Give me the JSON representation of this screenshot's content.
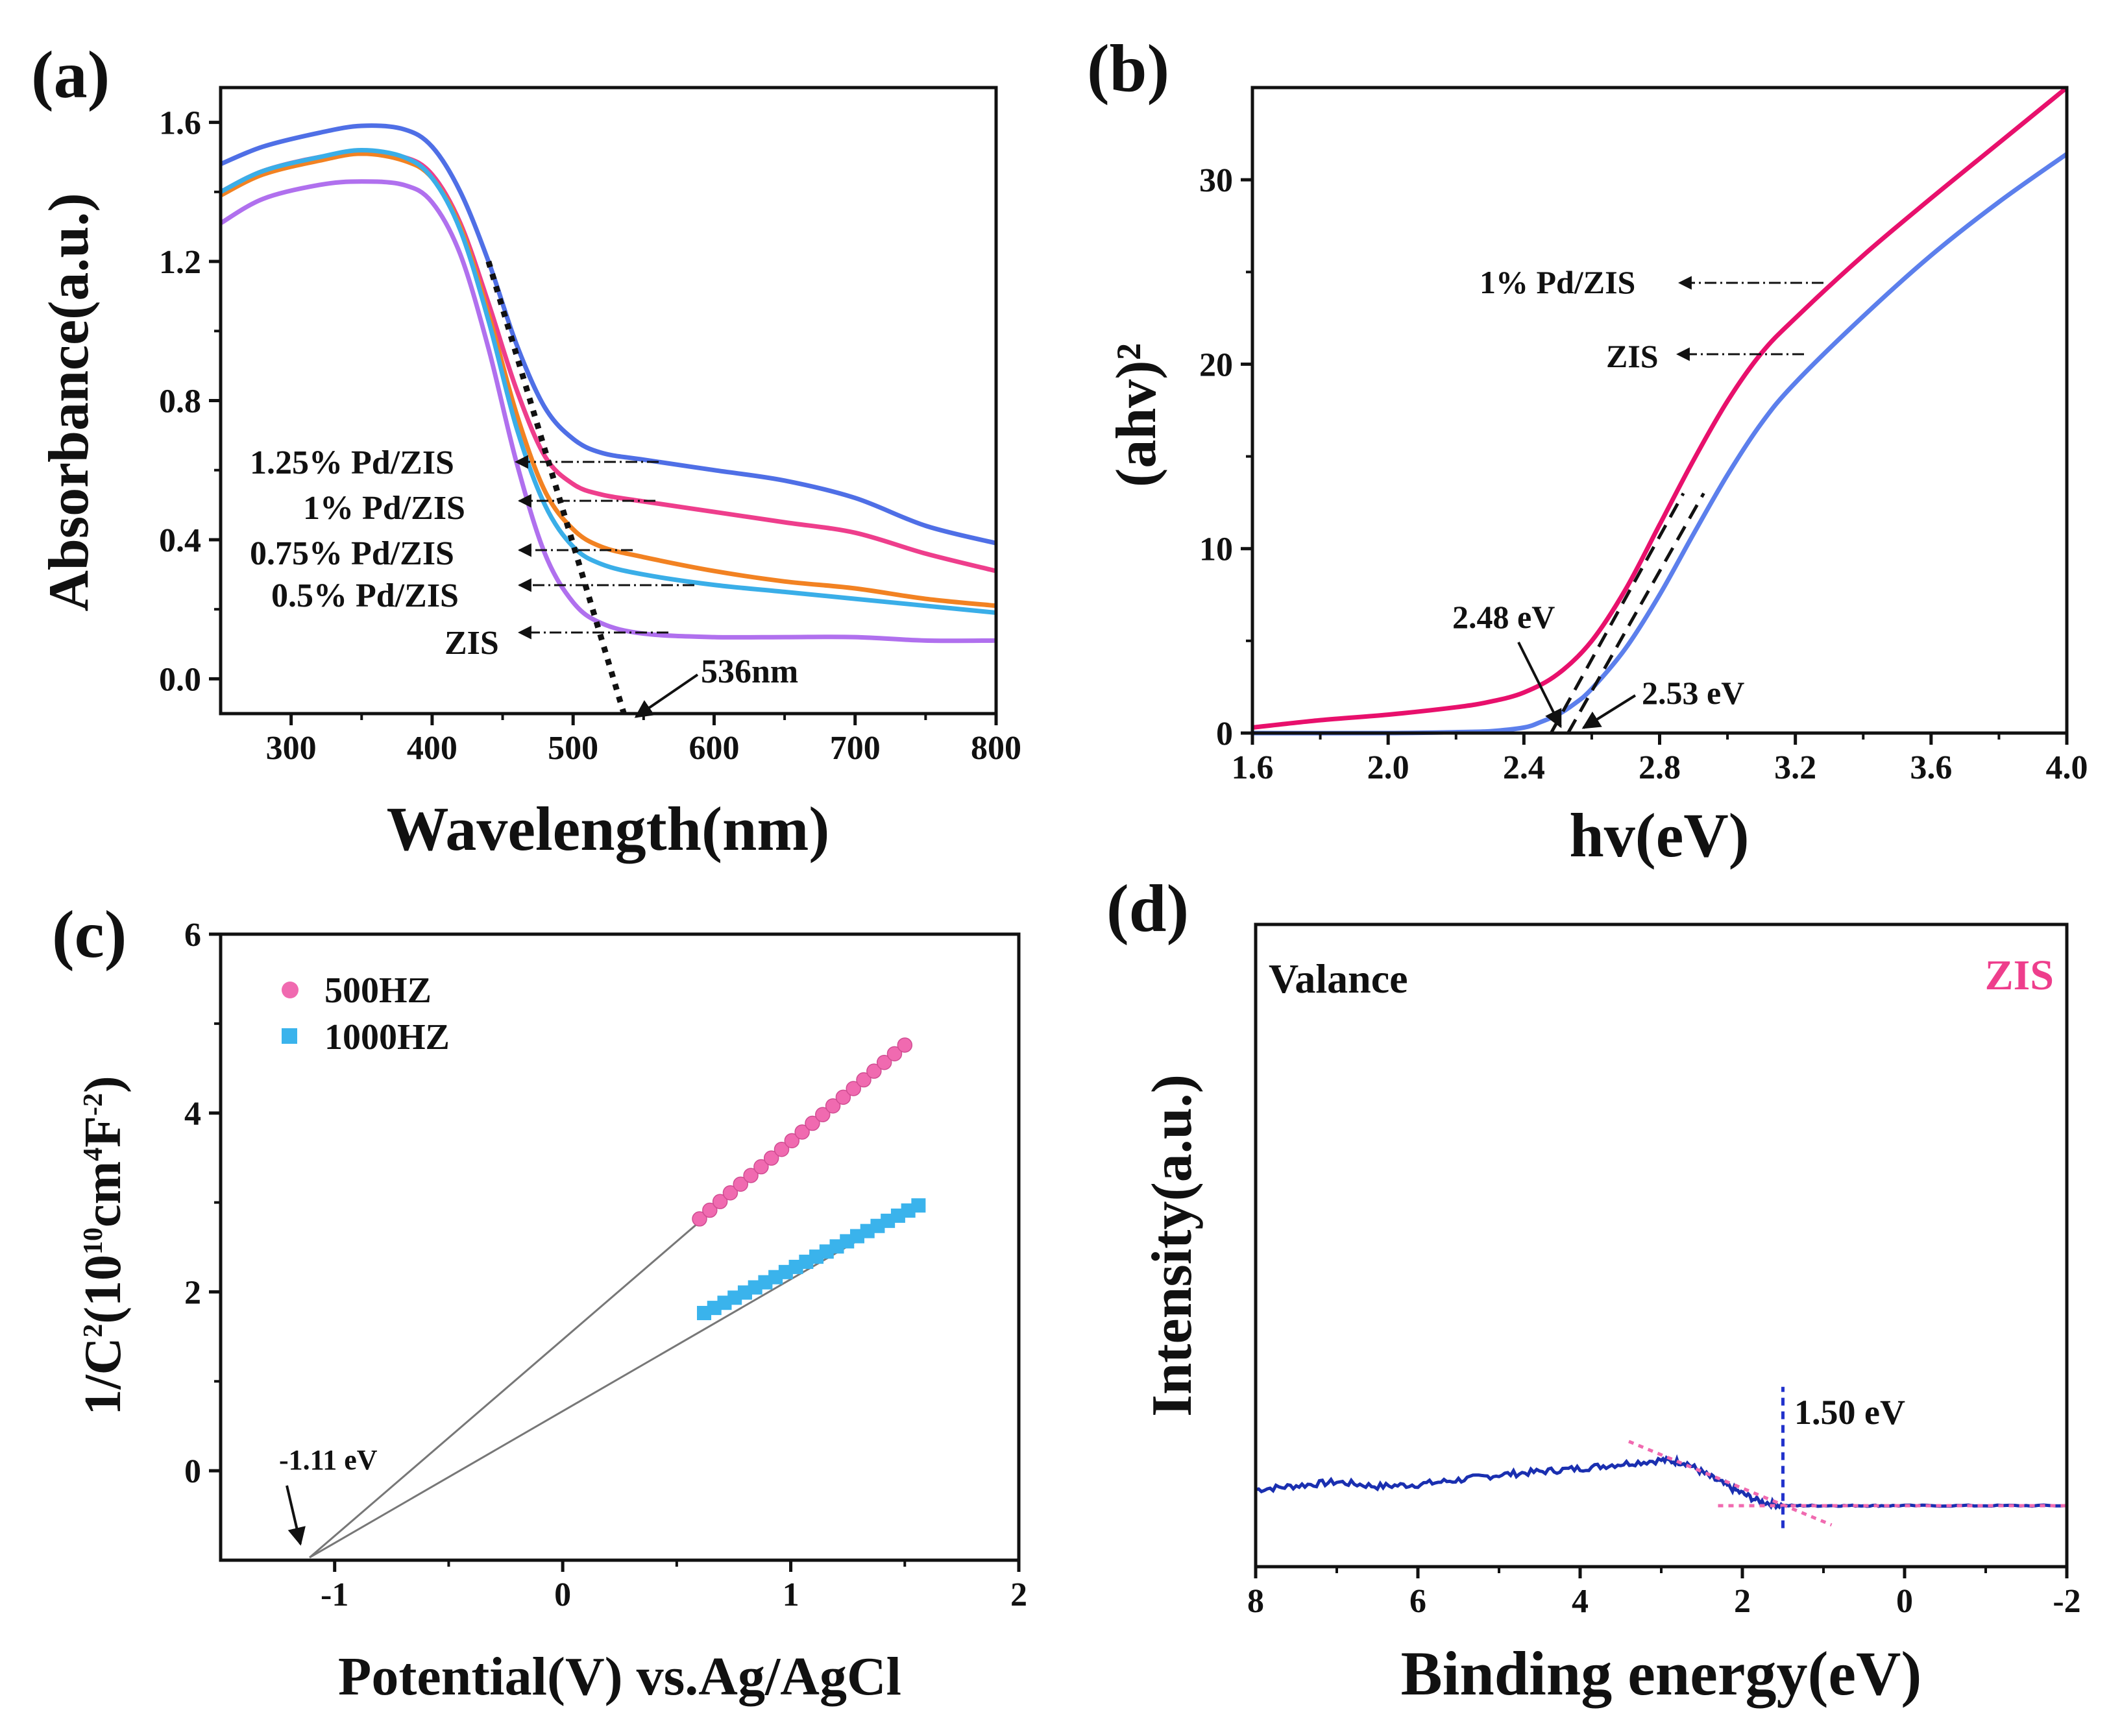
{
  "chart_data": [
    {
      "id": "a",
      "type": "line",
      "panel_label": "(a)",
      "xlabel": "Wavelength(nm)",
      "ylabel": "Absorbance(a.u.)",
      "xlim": [
        250,
        800
      ],
      "ylim": [
        -0.1,
        1.7
      ],
      "xticks": [
        300,
        400,
        500,
        600,
        700,
        800
      ],
      "yticks": [
        0.0,
        0.4,
        0.8,
        1.2,
        1.6
      ],
      "ytick_labels": [
        "0.0",
        "0.4",
        "0.8",
        "1.2",
        "1.6"
      ],
      "series": [
        {
          "name": "1.25% Pd/ZIS",
          "color": "#4f6fe6",
          "x": [
            250,
            280,
            320,
            350,
            380,
            400,
            420,
            440,
            460,
            480,
            500,
            520,
            550,
            600,
            650,
            700,
            750,
            800
          ],
          "y": [
            1.48,
            1.53,
            1.57,
            1.59,
            1.58,
            1.53,
            1.4,
            1.2,
            0.96,
            0.78,
            0.69,
            0.65,
            0.63,
            0.6,
            0.57,
            0.52,
            0.44,
            0.39
          ]
        },
        {
          "name": "1% Pd/ZIS",
          "color": "#ee3e8c",
          "x": [
            250,
            280,
            320,
            350,
            380,
            400,
            420,
            440,
            460,
            480,
            500,
            520,
            550,
            600,
            650,
            700,
            750,
            800
          ],
          "y": [
            1.4,
            1.46,
            1.5,
            1.51,
            1.5,
            1.45,
            1.31,
            1.08,
            0.83,
            0.64,
            0.56,
            0.53,
            0.51,
            0.48,
            0.45,
            0.42,
            0.36,
            0.31
          ]
        },
        {
          "name": "0.75% Pd/ZIS",
          "color": "#f28222",
          "x": [
            250,
            280,
            320,
            350,
            380,
            400,
            420,
            440,
            460,
            480,
            500,
            520,
            550,
            600,
            650,
            700,
            750,
            800
          ],
          "y": [
            1.39,
            1.45,
            1.49,
            1.51,
            1.49,
            1.44,
            1.3,
            1.05,
            0.76,
            0.54,
            0.43,
            0.38,
            0.35,
            0.31,
            0.28,
            0.26,
            0.23,
            0.21
          ]
        },
        {
          "name": "0.5% Pd/ZIS",
          "color": "#3aaee8",
          "x": [
            250,
            280,
            320,
            350,
            380,
            400,
            420,
            440,
            460,
            480,
            500,
            520,
            550,
            600,
            650,
            700,
            750,
            800
          ],
          "y": [
            1.4,
            1.46,
            1.5,
            1.52,
            1.5,
            1.44,
            1.29,
            1.03,
            0.72,
            0.5,
            0.38,
            0.33,
            0.3,
            0.27,
            0.25,
            0.23,
            0.21,
            0.19
          ]
        },
        {
          "name": "ZIS",
          "color": "#b070ee",
          "x": [
            250,
            280,
            320,
            350,
            380,
            400,
            420,
            440,
            460,
            480,
            500,
            520,
            550,
            600,
            650,
            700,
            750,
            800
          ],
          "y": [
            1.31,
            1.38,
            1.42,
            1.43,
            1.42,
            1.37,
            1.22,
            0.95,
            0.62,
            0.36,
            0.22,
            0.16,
            0.13,
            0.12,
            0.12,
            0.12,
            0.11,
            0.11
          ]
        }
      ],
      "tangent": {
        "x": [
          440,
          536
        ],
        "y": [
          1.2,
          -0.1
        ]
      },
      "labels": [
        "1.25% Pd/ZIS",
        "1% Pd/ZIS",
        "0.75% Pd/ZIS",
        "0.5% Pd/ZIS",
        "ZIS"
      ],
      "annotation": {
        "text": "536nm",
        "x": 536
      }
    },
    {
      "id": "b",
      "type": "line",
      "panel_label": "(b)",
      "xlabel": "hv(eV)",
      "ylabel": "(ahv)²",
      "xlim": [
        1.6,
        4.0
      ],
      "ylim": [
        0,
        35
      ],
      "xticks": [
        1.6,
        2.0,
        2.4,
        2.8,
        3.2,
        3.6,
        4.0
      ],
      "xtick_labels": [
        "1.6",
        "2.0",
        "2.4",
        "2.8",
        "3.2",
        "3.6",
        "4.0"
      ],
      "yticks": [
        0,
        10,
        20,
        30
      ],
      "series": [
        {
          "name": "1% Pd/ZIS",
          "color": "#e8106c",
          "x": [
            1.6,
            1.8,
            2.0,
            2.2,
            2.3,
            2.4,
            2.5,
            2.6,
            2.7,
            2.8,
            2.9,
            3.0,
            3.1,
            3.2,
            3.4,
            3.6,
            3.8,
            4.0
          ],
          "y": [
            0.3,
            0.7,
            1.0,
            1.4,
            1.7,
            2.2,
            3.2,
            5.0,
            7.8,
            11.3,
            14.8,
            18.0,
            20.6,
            22.5,
            25.9,
            29.0,
            32.0,
            35.0
          ]
        },
        {
          "name": "ZIS",
          "color": "#5c7fec",
          "x": [
            1.6,
            2.0,
            2.2,
            2.3,
            2.4,
            2.45,
            2.5,
            2.55,
            2.6,
            2.7,
            2.8,
            2.9,
            3.0,
            3.1,
            3.2,
            3.4,
            3.6,
            3.8,
            4.0
          ],
          "y": [
            0.0,
            0.0,
            0.05,
            0.1,
            0.3,
            0.6,
            1.0,
            1.6,
            2.4,
            4.6,
            7.5,
            10.8,
            14.0,
            16.8,
            19.0,
            22.6,
            25.9,
            28.8,
            31.4
          ]
        }
      ],
      "tangents": [
        {
          "x": [
            2.48,
            2.87
          ],
          "y": [
            0,
            13.0
          ]
        },
        {
          "x": [
            2.53,
            2.93
          ],
          "y": [
            0,
            13.0
          ]
        }
      ],
      "labels": [
        "1% Pd/ZIS",
        "ZIS"
      ],
      "annotations": [
        {
          "text": "2.48 eV",
          "x": 2.48
        },
        {
          "text": "2.53 eV",
          "x": 2.53
        }
      ]
    },
    {
      "id": "c",
      "type": "scatter",
      "panel_label": "(c)",
      "xlabel": "Potential(V) vs.Ag/AgCl",
      "ylabel_main": "1/C",
      "ylabel_sup1": "2",
      "ylabel_mid": "(10",
      "ylabel_sup2": "10",
      "ylabel_unit": "cm",
      "ylabel_sup3": "4",
      "ylabel_unit2": "F",
      "ylabel_sup4": "-2",
      "ylabel_end": ")",
      "xlim": [
        -1.5,
        2
      ],
      "ylim": [
        -1,
        6
      ],
      "xticks": [
        -1,
        0,
        1,
        2
      ],
      "yticks": [
        0,
        2,
        4,
        6
      ],
      "series": [
        {
          "name": "500HZ",
          "color": "#f06ab0",
          "marker": "circle",
          "x_start": 0.6,
          "x_end": 1.5,
          "n": 21,
          "slope": 2.16,
          "intercept": 1.52
        },
        {
          "name": "1000HZ",
          "color": "#3ab3ec",
          "marker": "square",
          "x_start": 0.62,
          "x_end": 1.56,
          "n": 22,
          "slope": 1.28,
          "intercept": 0.97
        }
      ],
      "fit_origin": {
        "x": -1.11,
        "y": -0.97
      },
      "annotation": {
        "text": "-1.11 eV",
        "x": -1.11
      }
    },
    {
      "id": "d",
      "type": "line",
      "panel_label": "(d)",
      "xlabel": "Binding energy(eV)",
      "ylabel": "Intensity(a.u.)",
      "xlim": [
        8,
        -2
      ],
      "ylim": [
        0,
        100
      ],
      "xticks": [
        8,
        6,
        4,
        2,
        0,
        -2
      ],
      "title_left": "Valance",
      "title_right": "ZIS",
      "title_right_color": "#ee3e8c",
      "series": [
        {
          "name": "ZIS",
          "color": "#1a2fb0",
          "x": [
            8,
            7.5,
            7,
            6.5,
            6,
            5.5,
            5,
            4.5,
            4,
            3.5,
            3,
            2.7,
            2.4,
            2.1,
            1.8,
            1.5,
            1.0,
            0.5,
            0,
            -1,
            -2
          ],
          "y": [
            12.0,
            12.6,
            13.2,
            12.5,
            12.8,
            13.5,
            14.3,
            14.8,
            15.3,
            16.0,
            16.6,
            16.2,
            14.0,
            12.0,
            10.2,
            9.5,
            9.5,
            9.5,
            9.5,
            9.5,
            9.5
          ]
        }
      ],
      "tangents": [
        {
          "x": [
            3.4,
            0.9
          ],
          "y": [
            19.5,
            6.5
          ]
        },
        {
          "x": [
            2.3,
            -2
          ],
          "y": [
            9.5,
            9.5
          ]
        }
      ],
      "vline": {
        "x": 1.5,
        "y": [
          6,
          28
        ]
      },
      "annotation": {
        "text": "1.50 eV",
        "x": 1.5
      }
    }
  ]
}
